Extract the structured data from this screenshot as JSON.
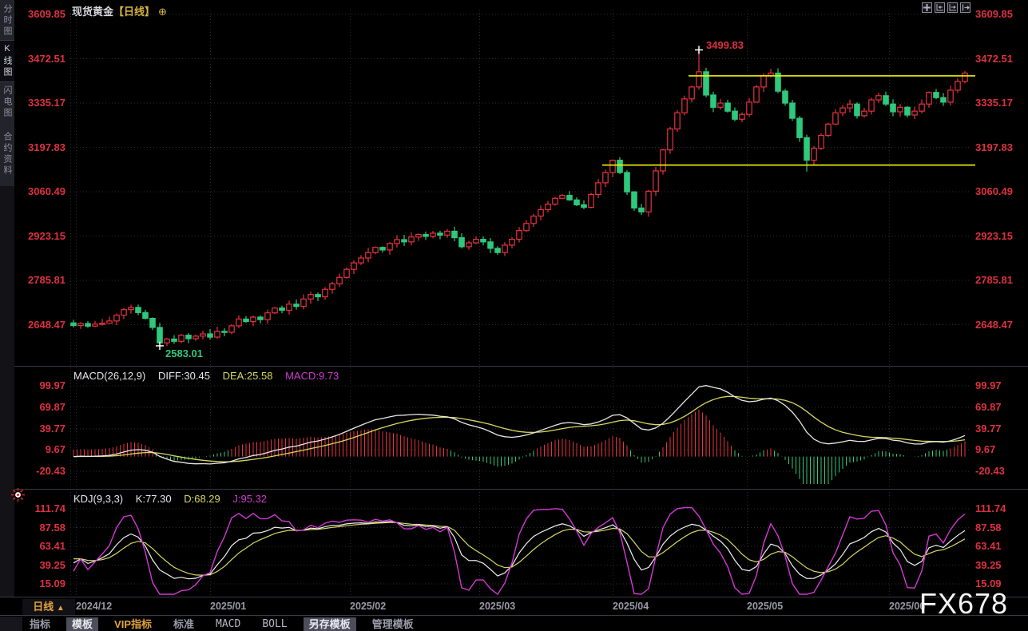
{
  "header": {
    "title": "现货黄金",
    "period_tag": "【日线】",
    "add_icon": "⊕"
  },
  "sidebar": {
    "tabs": [
      {
        "label": "分时图",
        "active": false
      },
      {
        "label": "K线图",
        "active": true
      },
      {
        "label": "闪电图",
        "active": false
      },
      {
        "label": "合约资料",
        "active": false
      }
    ]
  },
  "window_controls": {
    "icons": [
      "crosshair-tool-icon",
      "axis-compress-icon",
      "axis-expand-icon",
      "exit-chart-icon"
    ]
  },
  "indicators": {
    "macd": {
      "title": "MACD(26,12,9)",
      "diff_label": "DIFF:30.45",
      "dea_label": "DEA:25.58",
      "macd_label": "MACD:9.73"
    },
    "kdj": {
      "title": "KDJ(9,3,3)",
      "k_label": "K:77.30",
      "d_label": "D:68.29",
      "j_label": "J:95.32"
    }
  },
  "period_selector": {
    "label": "日线",
    "arrow": "▲"
  },
  "bottom_toolbar": {
    "items": [
      {
        "label": "指标",
        "style": "plain"
      },
      {
        "label": "模板",
        "style": "highlight"
      },
      {
        "label": "VIP指标",
        "style": "vip"
      },
      {
        "label": "标准",
        "style": "plain"
      },
      {
        "label": "MACD",
        "style": "mono"
      },
      {
        "label": "BOLL",
        "style": "mono"
      },
      {
        "label": "另存模板",
        "style": "highlight"
      },
      {
        "label": "管理模板",
        "style": "plain"
      }
    ]
  },
  "watermark": "FX678",
  "colors": {
    "up": "#e8323f",
    "down": "#2fc97c",
    "axis_label": "#dd3140",
    "trend": "#f2f200",
    "diff_line": "#e8e8e8",
    "dea_line": "#d8d860",
    "j_line": "#d438d4",
    "k_line": "#f0f0f0",
    "accent_gold": "#e2a33c",
    "gray_text": "#9a9aa8"
  },
  "chart_data": {
    "type": "candlestick",
    "title": "现货黄金 日线",
    "x_labels": [
      "2024/12",
      "2025/01",
      "2025/02",
      "2025/03",
      "2025/04",
      "2025/05",
      "2025/06"
    ],
    "y_axis_main": [
      "3609.85",
      "3472.51",
      "3335.17",
      "3197.83",
      "3060.49",
      "2923.15",
      "2785.81",
      "2648.47"
    ],
    "y_axis_macd": [
      "99.97",
      "69.87",
      "39.77",
      "9.67",
      "-20.43"
    ],
    "y_axis_kdj": [
      "111.74",
      "87.58",
      "63.41",
      "39.25",
      "15.09"
    ],
    "annotation_high": "3499.83",
    "annotation_low": "2583.01",
    "closes": [
      2646,
      2652,
      2644,
      2650,
      2653,
      2660,
      2678,
      2695,
      2702,
      2686,
      2668,
      2640,
      2592,
      2604,
      2597,
      2616,
      2605,
      2613,
      2620,
      2610,
      2628,
      2625,
      2645,
      2666,
      2658,
      2672,
      2664,
      2685,
      2700,
      2693,
      2712,
      2705,
      2728,
      2742,
      2735,
      2758,
      2775,
      2795,
      2820,
      2840,
      2855,
      2872,
      2888,
      2880,
      2900,
      2912,
      2905,
      2920,
      2928,
      2922,
      2932,
      2926,
      2938,
      2918,
      2890,
      2902,
      2913,
      2905,
      2885,
      2872,
      2895,
      2913,
      2940,
      2962,
      2985,
      3005,
      3022,
      3040,
      3049,
      3035,
      3020,
      3012,
      3052,
      3088,
      3120,
      3158,
      3120,
      3060,
      3010,
      2998,
      3062,
      3125,
      3190,
      3255,
      3305,
      3348,
      3385,
      3432,
      3360,
      3322,
      3335,
      3310,
      3285,
      3300,
      3338,
      3385,
      3420,
      3428,
      3372,
      3335,
      3288,
      3228,
      3158,
      3195,
      3235,
      3270,
      3305,
      3320,
      3332,
      3296,
      3310,
      3345,
      3358,
      3332,
      3308,
      3322,
      3298,
      3310,
      3332,
      3368,
      3352,
      3338,
      3375,
      3402,
      3428
    ],
    "key_points": [
      {
        "index": 87,
        "high": 3499.83,
        "marker": true
      },
      {
        "index": 12,
        "low": 2583.01,
        "marker": true
      },
      {
        "index": 102,
        "low": 3123.0,
        "marker": false
      }
    ],
    "trend_lines": [
      {
        "price": 3419.5,
        "start_index": 86
      },
      {
        "price": 3143.0,
        "start_index": 74
      }
    ],
    "indicator_macd": {
      "params": [
        26,
        12,
        9
      ],
      "current": {
        "diff": 30.45,
        "dea": 25.58,
        "macd": 9.73
      }
    },
    "indicator_kdj": {
      "params": [
        9,
        3,
        3
      ],
      "current": {
        "k": 77.3,
        "d": 68.29,
        "j": 95.32
      }
    }
  }
}
